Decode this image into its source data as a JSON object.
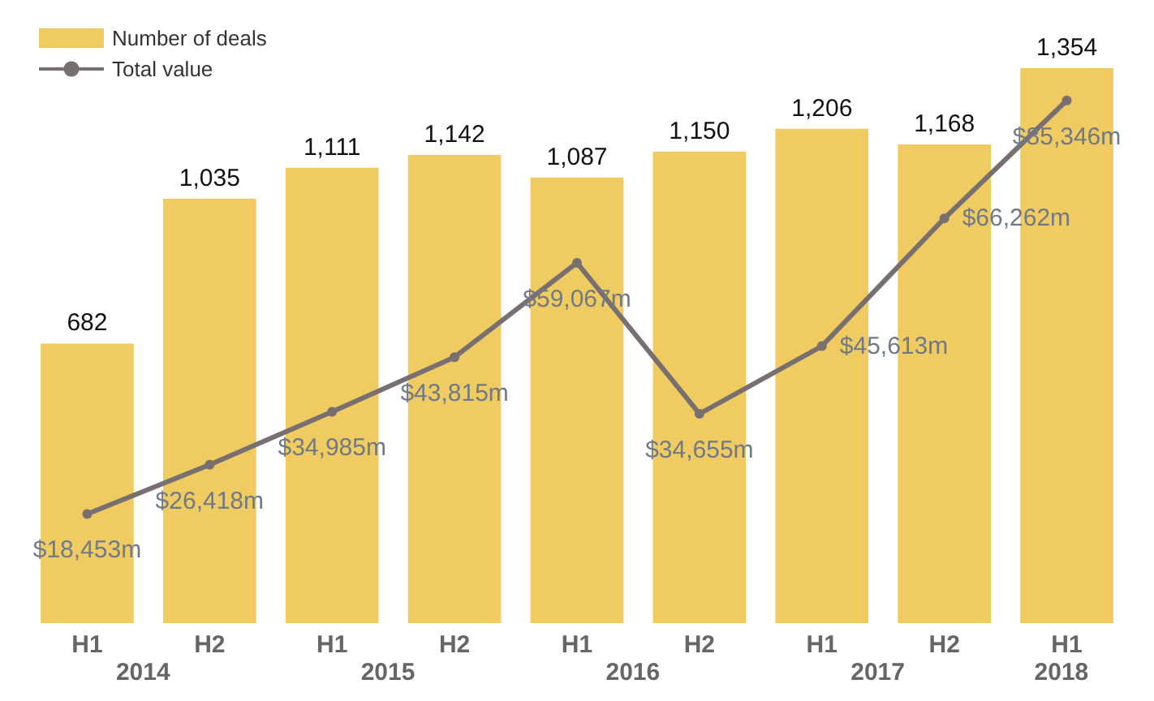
{
  "chart_data": {
    "type": "bar",
    "categories": [
      "H1",
      "H2",
      "H1",
      "H2",
      "H1",
      "H2",
      "H1",
      "H2",
      "H1"
    ],
    "series": [
      {
        "name": "Number of deals",
        "color": "#f0cb61",
        "values": [
          682,
          1035,
          1111,
          1142,
          1087,
          1150,
          1206,
          1168,
          1354
        ],
        "value_labels": [
          "682",
          "1,035",
          "1,111",
          "1,142",
          "1,087",
          "1,150",
          "1,206",
          "1,168",
          "1,354"
        ]
      },
      {
        "name": "Total value",
        "type": "line",
        "axis": "y2",
        "color": "#787070",
        "values": [
          18453,
          26418,
          34985,
          43815,
          59067,
          34655,
          45613,
          66262,
          85346
        ],
        "value_labels": [
          "$18,453m",
          "$26,418m",
          "$34,985m",
          "$43,815m",
          "$59,067m",
          "$34,655m",
          "$45,613m",
          "$66,262m",
          "$85,346m"
        ]
      }
    ],
    "marker": "circle",
    "legend": "top left",
    "grid": false,
    "annotations": [
      "2014",
      "2015",
      "2016",
      "2017",
      "2018"
    ]
  }
}
